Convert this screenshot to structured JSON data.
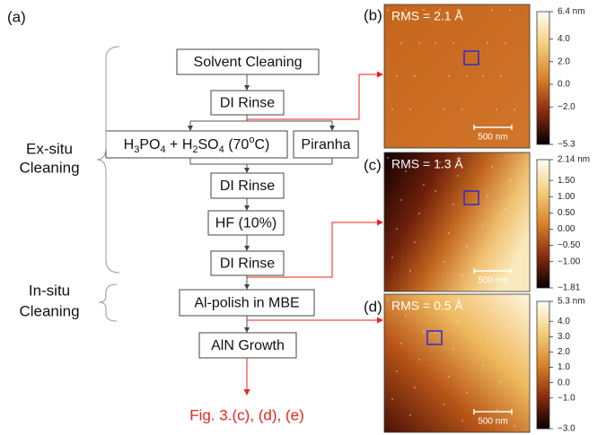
{
  "panel_labels": [
    "(a)",
    "(b)",
    "(c)",
    "(d)"
  ],
  "flowchart": {
    "groups": [
      {
        "lines": [
          "Ex-situ",
          "Cleaning"
        ]
      },
      {
        "lines": [
          "In-situ",
          "Cleaning"
        ]
      }
    ],
    "steps": [
      {
        "label": "Solvent Cleaning"
      },
      {
        "label": "DI Rinse"
      },
      {
        "label_parts": [
          "H",
          "3",
          "PO",
          "4",
          " + H",
          "2",
          "SO",
          "4",
          " (70",
          "o",
          "C)"
        ]
      },
      {
        "label": "Piranha"
      },
      {
        "label": "DI Rinse"
      },
      {
        "label": "HF (10%)"
      },
      {
        "label": "DI Rinse"
      },
      {
        "label": "Al-polish in MBE"
      },
      {
        "label": "AlN Growth"
      }
    ],
    "output": "Fig. 3.(c), (d), (e)"
  },
  "afm": [
    {
      "rms": "RMS = 2.1 Å",
      "scale_bar": "500 nm",
      "colorbar_ticks": [
        "6.4 nm",
        "4.0",
        "2.0",
        "0.0",
        "−2.0",
        "−5.3"
      ]
    },
    {
      "rms": "RMS = 1.3 Å",
      "scale_bar": "500 nm",
      "colorbar_ticks": [
        "2.14 nm",
        "1.50",
        "1.00",
        "0.50",
        "0.00",
        "−0.50",
        "−1.00",
        "−1.81"
      ]
    },
    {
      "rms": "RMS = 0.5 Å",
      "scale_bar": "500 nm",
      "colorbar_ticks": [
        "5.3 nm",
        "4.0",
        "3.0",
        "2.0",
        "1.0",
        "0.0",
        "−1.0",
        "−3.0"
      ]
    }
  ]
}
